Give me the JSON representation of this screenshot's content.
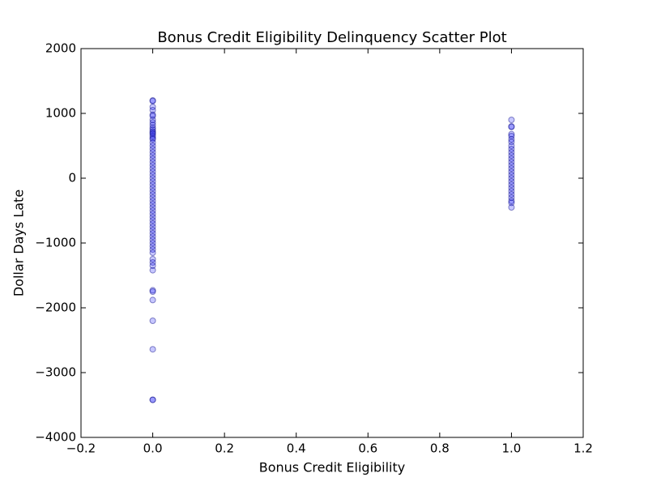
{
  "chart_data": {
    "type": "scatter",
    "title": "Bonus Credit Eligibility Delinquency Scatter Plot",
    "x_label": "Bonus Credit Eligibility",
    "y_label": "Dollar Days Late",
    "color": "#0000ff",
    "x": [
      0,
      0,
      0,
      0,
      0,
      0,
      0,
      0,
      0,
      0,
      0,
      0,
      0,
      0,
      0,
      0,
      0,
      0,
      0,
      0,
      0,
      0,
      0,
      0,
      0,
      0,
      0,
      0,
      0,
      0,
      0,
      0,
      0,
      0,
      0,
      0,
      0,
      0,
      0,
      0,
      0,
      0,
      0,
      0,
      0,
      0,
      0,
      0,
      0,
      0,
      0,
      0,
      0,
      0,
      0,
      0,
      0,
      0,
      0,
      0,
      0,
      0,
      0,
      1,
      1,
      1,
      1,
      1,
      1,
      1,
      1,
      1,
      1,
      1,
      1,
      1,
      1,
      1,
      1,
      1,
      1,
      1,
      1,
      1,
      1,
      1,
      1,
      1,
      1,
      1
    ],
    "values": [
      1200,
      1190,
      1100,
      1050,
      980,
      960,
      900,
      860,
      820,
      780,
      750,
      720,
      700,
      680,
      650,
      620,
      600,
      550,
      500,
      450,
      400,
      350,
      300,
      250,
      200,
      150,
      100,
      50,
      0,
      -50,
      -100,
      -150,
      -200,
      -250,
      -300,
      -350,
      -400,
      -450,
      -500,
      -550,
      -600,
      -650,
      -700,
      -750,
      -800,
      -850,
      -900,
      -950,
      -1000,
      -1050,
      -1100,
      -1150,
      -1250,
      -1300,
      -1350,
      -1420,
      -1730,
      -1750,
      -1880,
      -2200,
      -2640,
      -3420,
      -3420,
      900,
      800,
      790,
      680,
      650,
      600,
      560,
      500,
      450,
      400,
      350,
      300,
      250,
      200,
      150,
      100,
      50,
      0,
      -50,
      -100,
      -150,
      -200,
      -250,
      -300,
      -350,
      -380,
      -450
    ],
    "xlim": [
      -0.2,
      1.2
    ],
    "xticks": [
      {
        "value": -0.2,
        "label": "−0.2"
      },
      {
        "value": 0,
        "label": "0.0"
      },
      0.2,
      0.4,
      0.6,
      0.8,
      {
        "value": 1,
        "label": "1.0"
      },
      1.2
    ],
    "ylim": [
      -4000,
      2000
    ],
    "yticks": [
      {
        "value": -4000,
        "label": "−4000"
      },
      {
        "value": -3000,
        "label": "−3000"
      },
      {
        "value": -2000,
        "label": "−2000"
      },
      {
        "value": -1000,
        "label": "−1000"
      },
      0,
      1000,
      2000
    ]
  }
}
